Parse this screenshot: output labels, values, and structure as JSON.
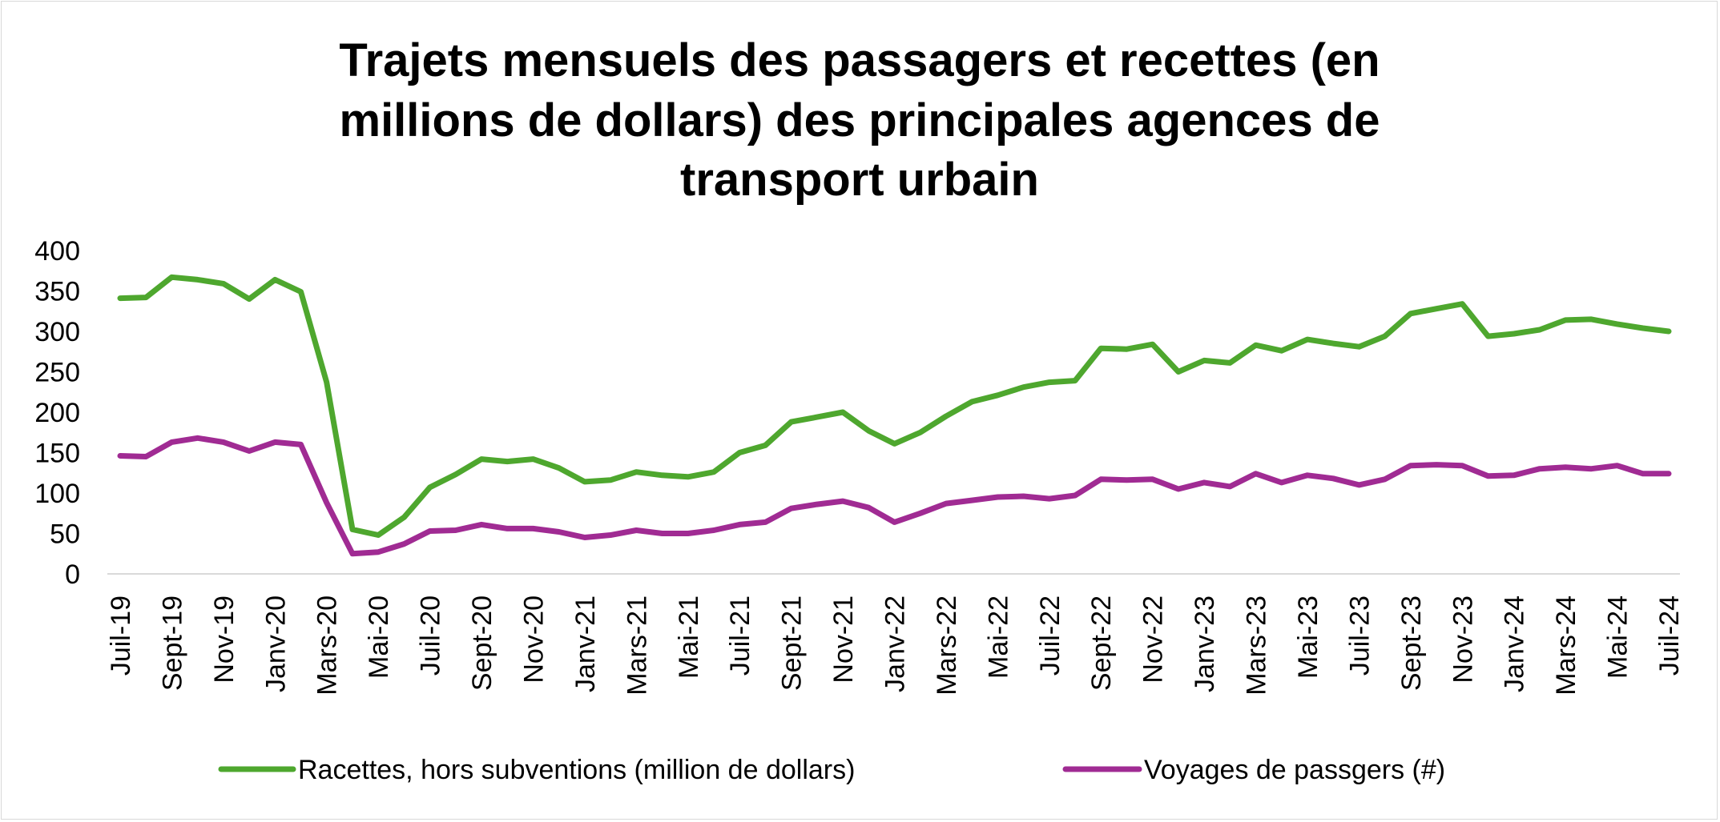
{
  "chart_data": {
    "type": "line",
    "title_lines": [
      "Trajets mensuels des passagers et recettes (en",
      "millions de dollars) des principales agences de",
      "transport urbain"
    ],
    "xlabel": "",
    "ylabel": "",
    "ylim": [
      0,
      400
    ],
    "yticks": [
      0,
      50,
      100,
      150,
      200,
      250,
      300,
      350,
      400
    ],
    "grid": false,
    "legend_position": "bottom",
    "x": [
      "Juil-19",
      "Août-19",
      "Sept-19",
      "Oct-19",
      "Nov-19",
      "Déc-19",
      "Janv-20",
      "Févr-20",
      "Mars-20",
      "Avr-20",
      "Mai-20",
      "Juin-20",
      "Juil-20",
      "Août-20",
      "Sept-20",
      "Oct-20",
      "Nov-20",
      "Déc-20",
      "Janv-21",
      "Févr-21",
      "Mars-21",
      "Avr-21",
      "Mai-21",
      "Juin-21",
      "Juil-21",
      "Août-21",
      "Sept-21",
      "Oct-21",
      "Nov-21",
      "Déc-21",
      "Janv-22",
      "Févr-22",
      "Mars-22",
      "Avr-22",
      "Mai-22",
      "Juin-22",
      "Juil-22",
      "Août-22",
      "Sept-22",
      "Oct-22",
      "Nov-22",
      "Déc-22",
      "Janv-23",
      "Févr-23",
      "Mars-23",
      "Avr-23",
      "Mai-23",
      "Juin-23",
      "Juil-23",
      "Août-23",
      "Sept-23",
      "Oct-23",
      "Nov-23",
      "Déc-23",
      "Janv-24",
      "Févr-24",
      "Mars-24",
      "Avr-24",
      "Mai-24",
      "Juin-24",
      "Juil-24"
    ],
    "x_tick_labels": [
      "Juil-19",
      "",
      "Sept-19",
      "",
      "Nov-19",
      "",
      "Janv-20",
      "",
      "Mars-20",
      "",
      "Mai-20",
      "",
      "Juil-20",
      "",
      "Sept-20",
      "",
      "Nov-20",
      "",
      "Janv-21",
      "",
      "Mars-21",
      "",
      "Mai-21",
      "",
      "Juil-21",
      "",
      "Sept-21",
      "",
      "Nov-21",
      "",
      "Janv-22",
      "",
      "Mars-22",
      "",
      "Mai-22",
      "",
      "Juil-22",
      "",
      "Sept-22",
      "",
      "Nov-22",
      "",
      "Janv-23",
      "",
      "Mars-23",
      "",
      "Mai-23",
      "",
      "Juil-23",
      "",
      "Sept-23",
      "",
      "Nov-23",
      "",
      "Janv-24",
      "",
      "Mars-24",
      "",
      "Mai-24",
      "",
      "Juil-24"
    ],
    "series": [
      {
        "name": "Racettes, hors subventions (million de dollars)",
        "color": "#4ea72e",
        "values": [
          341,
          342,
          367,
          364,
          359,
          340,
          364,
          349,
          237,
          55,
          48,
          70,
          107,
          123,
          142,
          139,
          142,
          131,
          114,
          116,
          126,
          122,
          120,
          126,
          150,
          159,
          188,
          194,
          200,
          177,
          161,
          175,
          195,
          213,
          221,
          231,
          237,
          239,
          279,
          278,
          284,
          250,
          264,
          261,
          283,
          276,
          290,
          285,
          281,
          294,
          322,
          328,
          334,
          294,
          297,
          302,
          314,
          315,
          309,
          304,
          300
        ]
      },
      {
        "name": "Voyages de passgers (#)",
        "color": "#a02b93",
        "values": [
          146,
          145,
          163,
          168,
          163,
          152,
          163,
          160,
          88,
          25,
          27,
          37,
          53,
          54,
          61,
          56,
          56,
          52,
          45,
          48,
          54,
          50,
          50,
          54,
          61,
          64,
          81,
          86,
          90,
          82,
          64,
          75,
          87,
          91,
          95,
          96,
          93,
          97,
          117,
          116,
          117,
          105,
          113,
          108,
          124,
          113,
          122,
          118,
          110,
          117,
          134,
          135,
          134,
          121,
          122,
          130,
          132,
          130,
          134,
          124,
          124
        ]
      }
    ]
  }
}
